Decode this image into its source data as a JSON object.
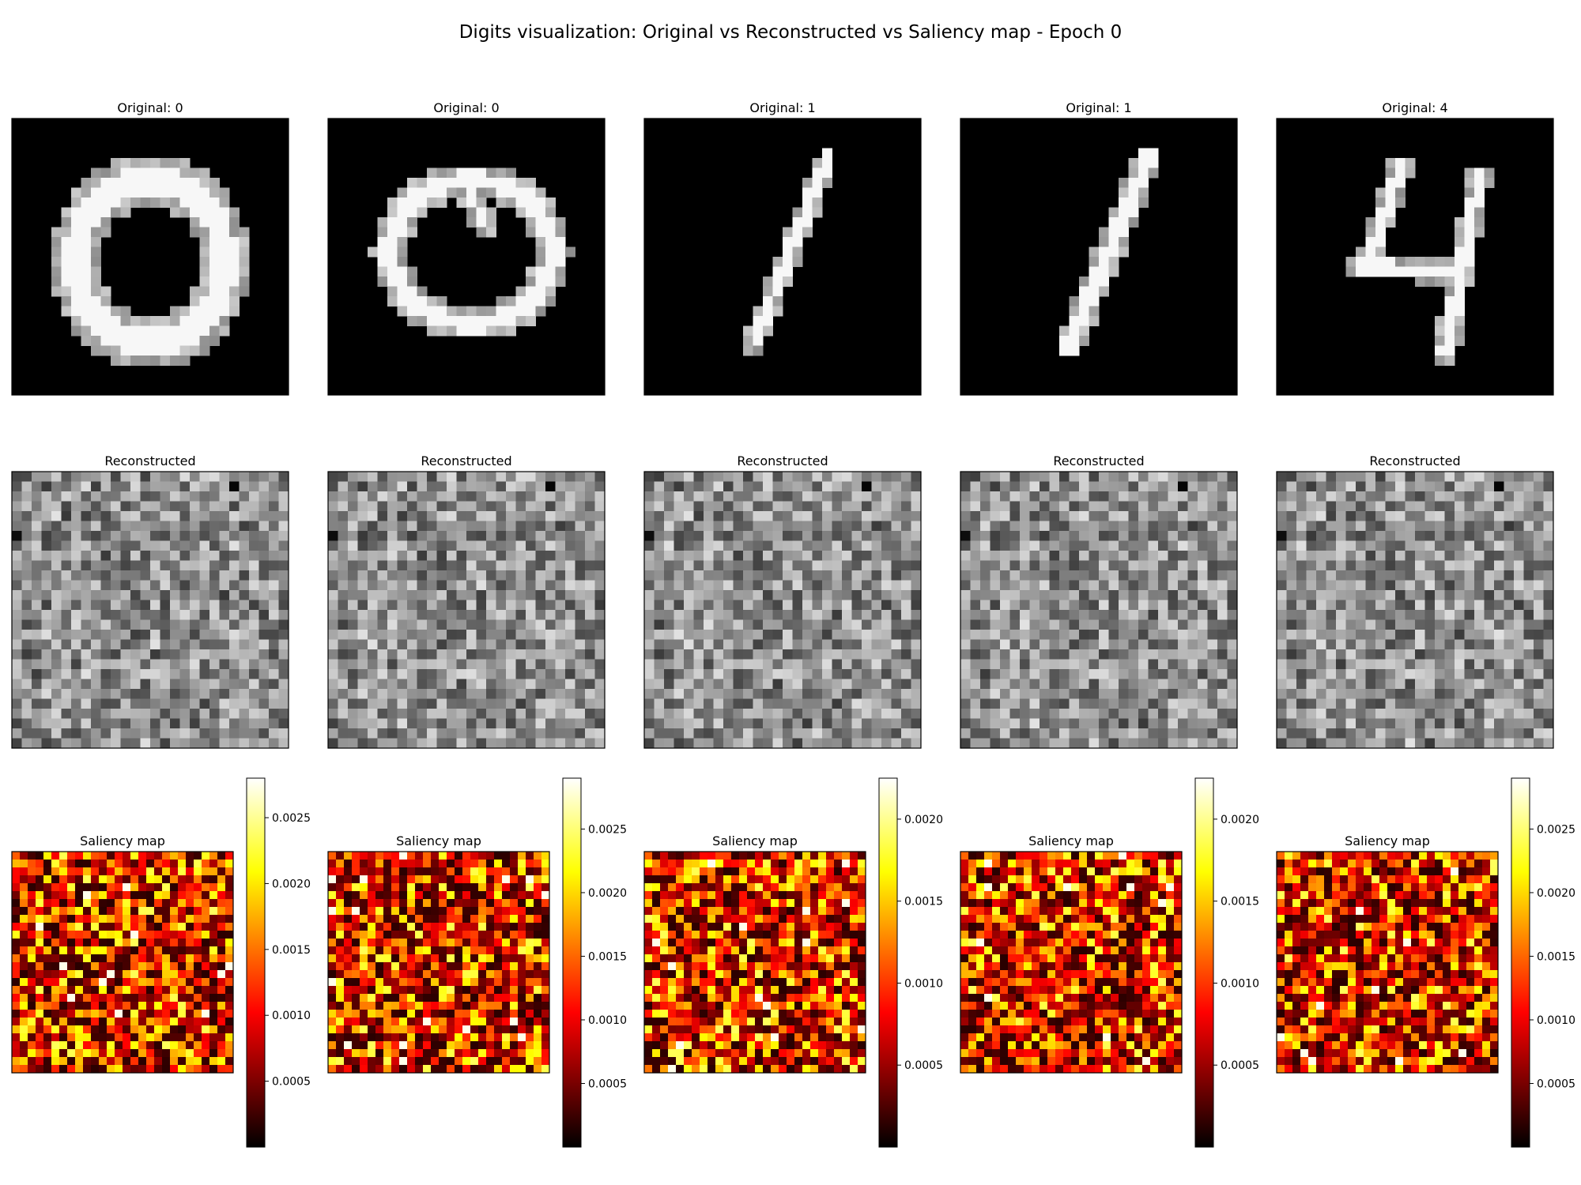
{
  "figure": {
    "title": "Digits visualization: Original vs Reconstructed vs Saliency map - Epoch 0"
  },
  "chart_data": {
    "type": "heatmap",
    "epoch": 0,
    "grid_size": 28,
    "rows": [
      {
        "row_title": "Original",
        "colormap": "gray",
        "panels": [
          {
            "title": "Original: 0",
            "label": 0
          },
          {
            "title": "Original: 0",
            "label": 0
          },
          {
            "title": "Original: 1",
            "label": 1
          },
          {
            "title": "Original: 1",
            "label": 1
          },
          {
            "title": "Original: 4",
            "label": 4
          }
        ]
      },
      {
        "row_title": "Reconstructed",
        "colormap": "gray",
        "panels": [
          {
            "title": "Reconstructed"
          },
          {
            "title": "Reconstructed"
          },
          {
            "title": "Reconstructed"
          },
          {
            "title": "Reconstructed"
          },
          {
            "title": "Reconstructed"
          }
        ]
      },
      {
        "row_title": "Saliency map",
        "colormap": "hot",
        "panels": [
          {
            "title": "Saliency map",
            "vmax": 0.0028,
            "colorbar_ticks": [
              "0.0005",
              "0.0010",
              "0.0015",
              "0.0020",
              "0.0025"
            ]
          },
          {
            "title": "Saliency map",
            "vmax": 0.0029,
            "colorbar_ticks": [
              "0.0005",
              "0.0010",
              "0.0015",
              "0.0020",
              "0.0025"
            ]
          },
          {
            "title": "Saliency map",
            "vmax": 0.00225,
            "colorbar_ticks": [
              "0.0005",
              "0.0010",
              "0.0015",
              "0.0020"
            ]
          },
          {
            "title": "Saliency map",
            "vmax": 0.00225,
            "colorbar_ticks": [
              "0.0005",
              "0.0010",
              "0.0015",
              "0.0020"
            ]
          },
          {
            "title": "Saliency map",
            "vmax": 0.0029,
            "colorbar_ticks": [
              "0.0005",
              "0.0010",
              "0.0015",
              "0.0020",
              "0.0025"
            ]
          }
        ]
      }
    ],
    "colors": {
      "background": "#ffffff",
      "frame": "#000000",
      "text": "#000000"
    }
  }
}
